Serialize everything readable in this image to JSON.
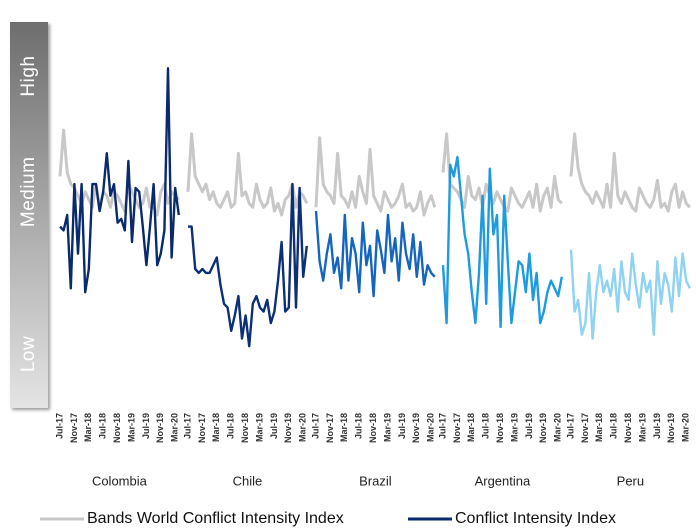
{
  "chart_data": {
    "type": "line",
    "ylim": [
      0,
      100
    ],
    "yticks": [
      {
        "value": 14,
        "label": "Low"
      },
      {
        "value": 56,
        "label": "Medium"
      },
      {
        "value": 86,
        "label": "High"
      }
    ],
    "x": [
      "Jul-17",
      null,
      null,
      null,
      "Nov-17",
      null,
      null,
      null,
      "Mar-18",
      null,
      null,
      null,
      "Jul-18",
      null,
      null,
      null,
      "Nov-18",
      null,
      null,
      null,
      "Mar-19",
      null,
      null,
      null,
      "Jul-19",
      null,
      null,
      null,
      "Nov-19",
      null,
      null,
      null,
      "Mar-20",
      null
    ],
    "series": [
      {
        "name": "Bands World Conflict Intensity Index",
        "color": "#c8c8c8"
      },
      {
        "name": "Conflict Intensity Index",
        "color": "#0a2a6e"
      }
    ],
    "panels": [
      {
        "name": "Colombia",
        "series": [
          {
            "values": [
              60,
              72,
              61,
              58,
              57,
              55,
              53,
              56,
              54,
              52,
              58,
              52,
              56,
              55,
              52,
              56,
              55,
              53,
              51,
              58,
              56,
              54,
              52,
              53,
              57,
              52,
              52,
              50,
              56,
              58,
              53,
              56,
              55,
              54
            ]
          },
          {
            "color": "#0a2a6e",
            "values": [
              47,
              46,
              50,
              31,
              58,
              40,
              58,
              30,
              36,
              58,
              58,
              51,
              56,
              66,
              55,
              58,
              48,
              49,
              46,
              64,
              43,
              57,
              56,
              47,
              37,
              47,
              58,
              37,
              40,
              46,
              88,
              39,
              57,
              50
            ]
          }
        ]
      },
      {
        "name": "Chile",
        "series": [
          {
            "values": [
              56,
              71,
              60,
              58,
              56,
              58,
              54,
              56,
              53,
              52,
              54,
              56,
              52,
              53,
              66,
              55,
              56,
              53,
              52,
              58,
              54,
              52,
              53,
              57,
              51,
              53,
              50,
              54,
              55,
              58,
              52,
              56,
              55,
              53
            ]
          },
          {
            "color": "#0d2f78",
            "values": [
              47,
              47,
              36,
              35,
              36,
              35,
              35,
              37,
              39,
              32,
              27,
              26,
              20,
              24,
              29,
              18,
              24,
              16,
              27,
              29,
              26,
              25,
              28,
              22,
              25,
              33,
              43,
              25,
              26,
              58,
              26,
              57,
              34,
              42
            ]
          }
        ]
      },
      {
        "name": "Brazil",
        "series": [
          {
            "values": [
              52,
              70,
              58,
              56,
              55,
              53,
              66,
              55,
              54,
              52,
              56,
              52,
              60,
              56,
              53,
              67,
              55,
              53,
              51,
              56,
              54,
              52,
              53,
              55,
              58,
              52,
              53,
              51,
              52,
              56,
              50,
              53,
              55,
              52
            ]
          },
          {
            "color": "#1565c0",
            "values": [
              51,
              38,
              33,
              40,
              45,
              35,
              39,
              31,
              50,
              33,
              44,
              40,
              30,
              48,
              37,
              42,
              29,
              46,
              41,
              35,
              50,
              38,
              44,
              33,
              48,
              40,
              36,
              45,
              34,
              43,
              32,
              37,
              35,
              34
            ]
          }
        ]
      },
      {
        "name": "Argentina",
        "series": [
          {
            "values": [
              61,
              71,
              58,
              57,
              56,
              54,
              52,
              60,
              55,
              54,
              57,
              52,
              58,
              55,
              53,
              56,
              54,
              52,
              51,
              57,
              55,
              53,
              52,
              54,
              56,
              52,
              58,
              51,
              55,
              57,
              52,
              60,
              54,
              53
            ]
          },
          {
            "color": "#1e9be0",
            "values": [
              37,
              22,
              63,
              60,
              65,
              55,
              45,
              40,
              30,
              22,
              35,
              55,
              27,
              62,
              45,
              50,
              21,
              55,
              38,
              22,
              30,
              38,
              37,
              30,
              40,
              28,
              35,
              22,
              25,
              30,
              33,
              31,
              29,
              34
            ]
          }
        ]
      },
      {
        "name": "Peru",
        "series": [
          {
            "values": [
              60,
              71,
              62,
              58,
              56,
              55,
              53,
              56,
              54,
              52,
              58,
              52,
              66,
              55,
              53,
              56,
              54,
              52,
              51,
              57,
              55,
              53,
              52,
              54,
              59,
              52,
              53,
              51,
              56,
              58,
              52,
              56,
              53,
              52
            ]
          },
          {
            "color": "#8fd3f0",
            "values": [
              41,
              25,
              28,
              19,
              22,
              35,
              18,
              30,
              37,
              30,
              33,
              29,
              36,
              25,
              38,
              30,
              28,
              40,
              32,
              26,
              35,
              30,
              33,
              19,
              38,
              27,
              35,
              32,
              25,
              39,
              29,
              40,
              33,
              31
            ]
          }
        ]
      }
    ]
  }
}
